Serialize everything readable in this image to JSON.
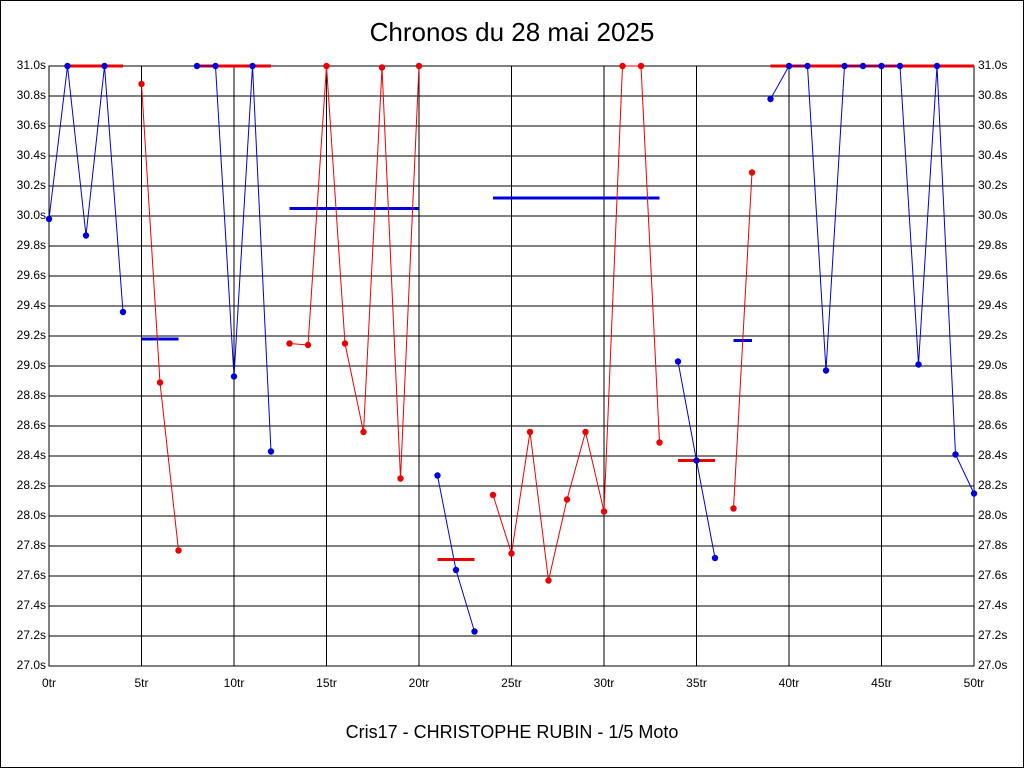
{
  "chart_data": {
    "type": "line",
    "title": "Chronos du 28 mai 2025",
    "xlabel": "Cris17 - CHRISTOPHE RUBIN - 1/5 Moto",
    "x": [
      0,
      1,
      2,
      3,
      4,
      5,
      6,
      7,
      8,
      9,
      10,
      11,
      12,
      13,
      14,
      15,
      16,
      17,
      18,
      19,
      20,
      21,
      22,
      23,
      24,
      25,
      26,
      27,
      28,
      29,
      30,
      31,
      32,
      33,
      34,
      35,
      36,
      37,
      38,
      39,
      40,
      41,
      42,
      43,
      44,
      45,
      46,
      47,
      48,
      49,
      50
    ],
    "xlim": [
      0,
      50
    ],
    "xticks": [
      {
        "value": 0,
        "label": "0tr"
      },
      {
        "value": 5,
        "label": "5tr"
      },
      {
        "value": 10,
        "label": "10tr"
      },
      {
        "value": 15,
        "label": "15tr"
      },
      {
        "value": 20,
        "label": "20tr"
      },
      {
        "value": 25,
        "label": "25tr"
      },
      {
        "value": 30,
        "label": "30tr"
      },
      {
        "value": 35,
        "label": "35tr"
      },
      {
        "value": 40,
        "label": "40tr"
      },
      {
        "value": 45,
        "label": "45tr"
      },
      {
        "value": 50,
        "label": "50tr"
      }
    ],
    "ylim": [
      27.0,
      31.0
    ],
    "yticks": [
      {
        "value": 27.0,
        "label": "27.0s"
      },
      {
        "value": 27.2,
        "label": "27.2s"
      },
      {
        "value": 27.4,
        "label": "27.4s"
      },
      {
        "value": 27.6,
        "label": "27.6s"
      },
      {
        "value": 27.8,
        "label": "27.8s"
      },
      {
        "value": 28.0,
        "label": "28.0s"
      },
      {
        "value": 28.2,
        "label": "28.2s"
      },
      {
        "value": 28.4,
        "label": "28.4s"
      },
      {
        "value": 28.6,
        "label": "28.6s"
      },
      {
        "value": 28.8,
        "label": "28.8s"
      },
      {
        "value": 29.0,
        "label": "29.0s"
      },
      {
        "value": 29.2,
        "label": "29.2s"
      },
      {
        "value": 29.4,
        "label": "29.4s"
      },
      {
        "value": 29.6,
        "label": "29.6s"
      },
      {
        "value": 29.8,
        "label": "29.8s"
      },
      {
        "value": 30.0,
        "label": "30.0s"
      },
      {
        "value": 30.2,
        "label": "30.2s"
      },
      {
        "value": 30.4,
        "label": "30.4s"
      },
      {
        "value": 30.6,
        "label": "30.6s"
      },
      {
        "value": 30.8,
        "label": "30.8s"
      },
      {
        "value": 31.0,
        "label": "31.0s"
      }
    ],
    "grid": true,
    "series": [
      {
        "color": "#0000dd",
        "values": [
          29.98,
          31.0,
          29.87,
          31.0,
          29.36,
          null,
          null,
          null,
          31.0,
          31.0,
          28.93,
          31.0,
          28.43,
          null,
          null,
          null,
          null,
          null,
          null,
          null,
          null,
          28.27,
          27.64,
          27.23,
          null,
          null,
          null,
          null,
          null,
          null,
          null,
          null,
          null,
          null,
          29.03,
          28.37,
          27.72,
          null,
          null,
          30.78,
          31.0,
          31.0,
          28.97,
          31.0,
          31.0,
          31.0,
          31.0,
          29.01,
          31.0,
          28.41,
          28.15
        ]
      },
      {
        "color": "#ee0000",
        "values": [
          null,
          null,
          null,
          null,
          null,
          30.88,
          28.89,
          27.77,
          null,
          null,
          null,
          null,
          null,
          29.15,
          29.14,
          31.0,
          29.15,
          28.56,
          30.99,
          28.25,
          31.0,
          null,
          null,
          null,
          28.14,
          27.75,
          28.56,
          27.57,
          28.11,
          28.56,
          28.03,
          31.0,
          31.0,
          28.49,
          null,
          null,
          null,
          28.05,
          30.29,
          null,
          null,
          null,
          null,
          null,
          null,
          null,
          null,
          null,
          null,
          null,
          null
        ]
      }
    ],
    "averages": [
      {
        "color": "#ee0000",
        "x": [
          1,
          4
        ],
        "value": 31.0
      },
      {
        "color": "#0000dd",
        "x": [
          5,
          7
        ],
        "value": 29.18
      },
      {
        "color": "#ee0000",
        "x": [
          8,
          12
        ],
        "value": 31.0
      },
      {
        "color": "#0000dd",
        "x": [
          13,
          20
        ],
        "value": 30.05
      },
      {
        "color": "#ee0000",
        "x": [
          21,
          23
        ],
        "value": 27.71
      },
      {
        "color": "#0000dd",
        "x": [
          24,
          33
        ],
        "value": 30.12
      },
      {
        "color": "#ee0000",
        "x": [
          34,
          36
        ],
        "value": 28.37
      },
      {
        "color": "#0000dd",
        "x": [
          37,
          38
        ],
        "value": 29.17
      },
      {
        "color": "#ee0000",
        "x": [
          39,
          50
        ],
        "value": 31.0
      }
    ]
  }
}
